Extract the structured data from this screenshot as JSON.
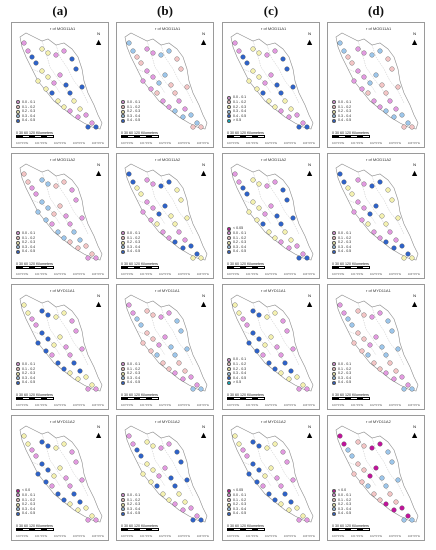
{
  "columns": [
    {
      "label": "(a)"
    },
    {
      "label": "(b)"
    },
    {
      "label": "(c)"
    },
    {
      "label": "(d)"
    }
  ],
  "rows": [
    {
      "title": "r of MOD11A1"
    },
    {
      "title": "r of MOD11A2"
    },
    {
      "title": "r of MYD11A1"
    },
    {
      "title": "r of MYD11A2"
    }
  ],
  "legend_classes": [
    {
      "label": "< 0.0",
      "color": "#c0149a"
    },
    {
      "label": "0.0 - 0.1",
      "color": "#e29ae0"
    },
    {
      "label": "0.1 - 0.2",
      "color": "#f3c5c5"
    },
    {
      "label": "0.2 - 0.3",
      "color": "#f4f1b0"
    },
    {
      "label": "0.3 - 0.4",
      "color": "#9dc6ea"
    },
    {
      "label": "0.4 - 0.5",
      "color": "#2e62c8"
    },
    {
      "label": "> 0.5",
      "color": "#06b6c9"
    },
    {
      "label": "< 0.05",
      "color": "#c0149a"
    }
  ],
  "panel_legends": [
    [
      [
        1,
        2,
        3,
        4,
        5
      ],
      [
        1,
        2,
        3,
        4,
        5
      ],
      [
        1,
        2,
        3,
        4,
        5,
        6
      ],
      [
        1,
        2,
        3,
        4,
        5
      ]
    ],
    [
      [
        1,
        2,
        3,
        4,
        5
      ],
      [
        1,
        2,
        3,
        4,
        5
      ],
      [
        7,
        1,
        2,
        3,
        4,
        5
      ],
      [
        1,
        2,
        3,
        4,
        5
      ]
    ],
    [
      [
        1,
        2,
        3,
        4,
        5
      ],
      [
        1,
        2,
        3,
        4,
        5
      ],
      [
        1,
        2,
        3,
        4,
        5,
        6
      ],
      [
        1,
        2,
        3,
        4,
        5
      ]
    ],
    [
      [
        0,
        1,
        2,
        3,
        4,
        5
      ],
      [
        1,
        2,
        3,
        4,
        5
      ],
      [
        7,
        1,
        2,
        3,
        4,
        5
      ],
      [
        0,
        1,
        2,
        3,
        4,
        5
      ]
    ]
  ],
  "north_label": "N",
  "scale_text": "0   30   60        120 Kilometers",
  "lon_ticks": [
    "100°0'0\"E",
    "101°0'0\"E",
    "102°0'0\"E",
    "103°0'0\"E",
    "104°0'0\"E"
  ],
  "icons": {
    "north": "north-arrow-icon"
  }
}
